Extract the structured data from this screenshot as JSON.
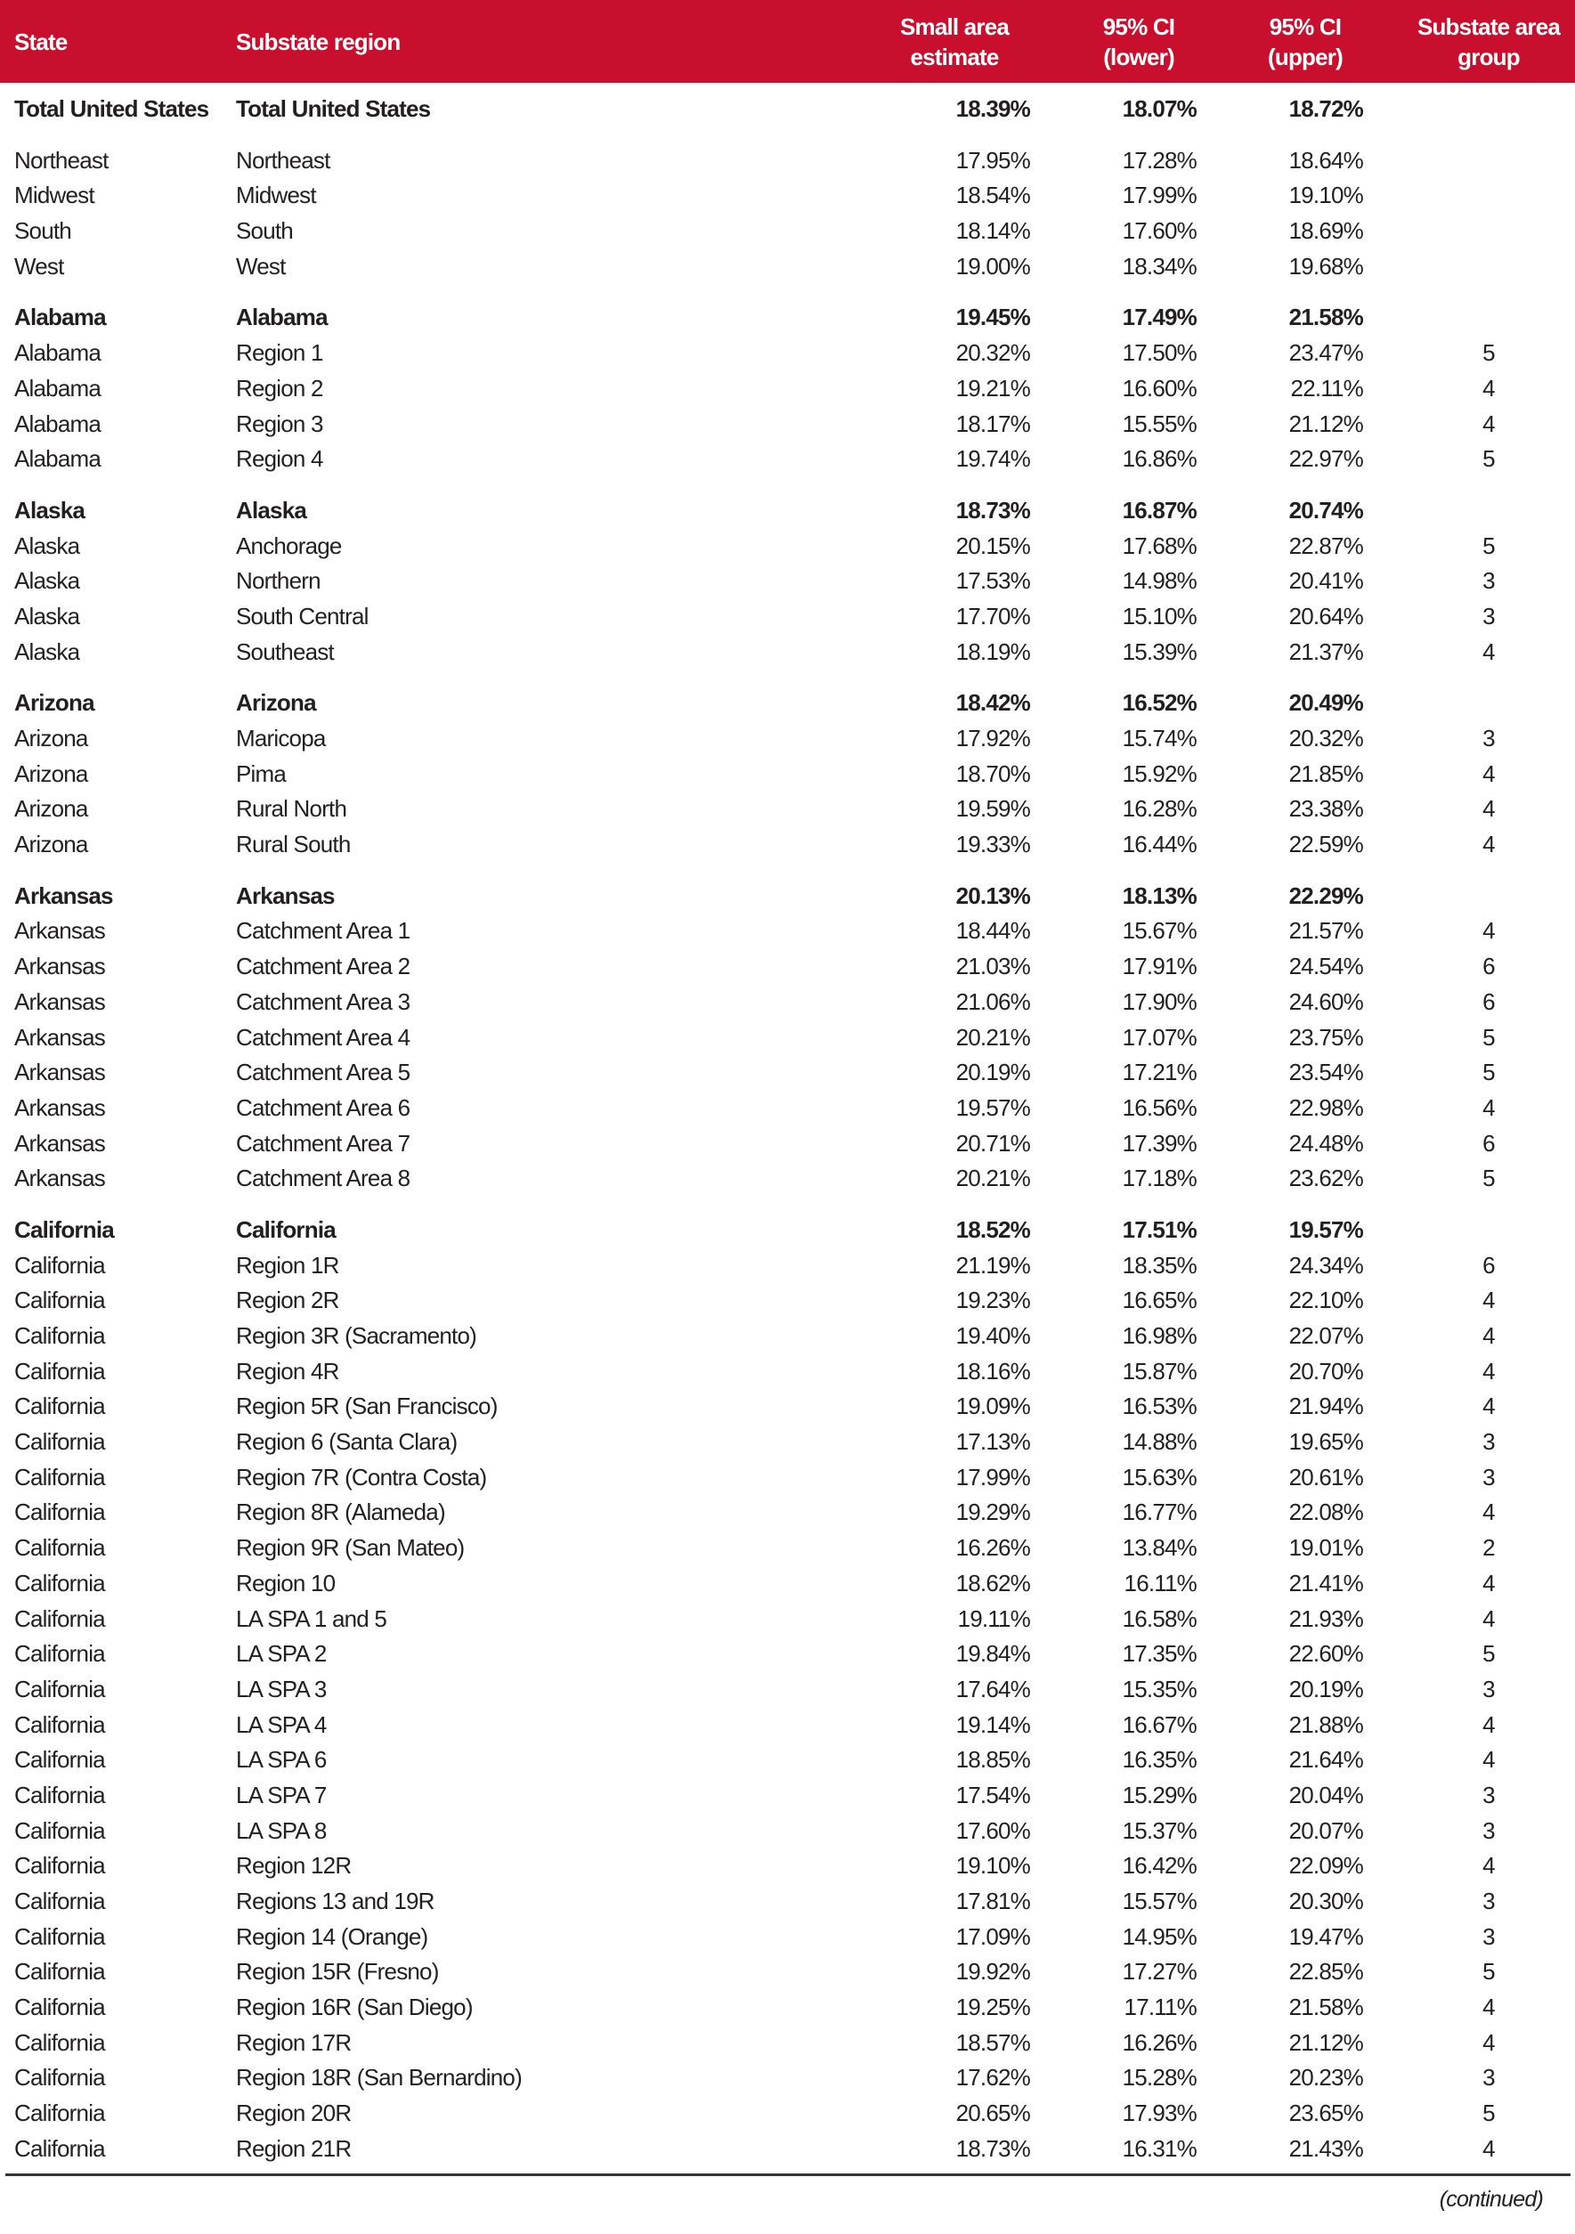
{
  "header": {
    "state": "State",
    "region": "Substate region",
    "estimate": [
      "Small area",
      "estimate"
    ],
    "lower": [
      "95% CI",
      "(lower)"
    ],
    "upper": [
      "95% CI",
      "(upper)"
    ],
    "group": [
      "Substate area",
      "group"
    ]
  },
  "header_color": "#c8102e",
  "groups": [
    {
      "rows": [
        [
          "Total United States",
          "Total United States",
          "18.39%",
          "18.07%",
          "18.72%",
          ""
        ]
      ],
      "bold_first": true
    },
    {
      "rows": [
        [
          "Northeast",
          "Northeast",
          "17.95%",
          "17.28%",
          "18.64%",
          ""
        ],
        [
          "Midwest",
          "Midwest",
          "18.54%",
          "17.99%",
          "19.10%",
          ""
        ],
        [
          "South",
          "South",
          "18.14%",
          "17.60%",
          "18.69%",
          ""
        ],
        [
          "West",
          "West",
          "19.00%",
          "18.34%",
          "19.68%",
          ""
        ]
      ],
      "bold_first": false
    },
    {
      "rows": [
        [
          "Alabama",
          "Alabama",
          "19.45%",
          "17.49%",
          "21.58%",
          ""
        ],
        [
          "Alabama",
          "Region 1",
          "20.32%",
          "17.50%",
          "23.47%",
          "5"
        ],
        [
          "Alabama",
          "Region 2",
          "19.21%",
          "16.60%",
          "22.11%",
          "4"
        ],
        [
          "Alabama",
          "Region 3",
          "18.17%",
          "15.55%",
          "21.12%",
          "4"
        ],
        [
          "Alabama",
          "Region 4",
          "19.74%",
          "16.86%",
          "22.97%",
          "5"
        ]
      ],
      "bold_first": true
    },
    {
      "rows": [
        [
          "Alaska",
          "Alaska",
          "18.73%",
          "16.87%",
          "20.74%",
          ""
        ],
        [
          "Alaska",
          "Anchorage",
          "20.15%",
          "17.68%",
          "22.87%",
          "5"
        ],
        [
          "Alaska",
          "Northern",
          "17.53%",
          "14.98%",
          "20.41%",
          "3"
        ],
        [
          "Alaska",
          "South Central",
          "17.70%",
          "15.10%",
          "20.64%",
          "3"
        ],
        [
          "Alaska",
          "Southeast",
          "18.19%",
          "15.39%",
          "21.37%",
          "4"
        ]
      ],
      "bold_first": true
    },
    {
      "rows": [
        [
          "Arizona",
          "Arizona",
          "18.42%",
          "16.52%",
          "20.49%",
          ""
        ],
        [
          "Arizona",
          "Maricopa",
          "17.92%",
          "15.74%",
          "20.32%",
          "3"
        ],
        [
          "Arizona",
          "Pima",
          "18.70%",
          "15.92%",
          "21.85%",
          "4"
        ],
        [
          "Arizona",
          "Rural North",
          "19.59%",
          "16.28%",
          "23.38%",
          "4"
        ],
        [
          "Arizona",
          "Rural South",
          "19.33%",
          "16.44%",
          "22.59%",
          "4"
        ]
      ],
      "bold_first": true
    },
    {
      "rows": [
        [
          "Arkansas",
          "Arkansas",
          "20.13%",
          "18.13%",
          "22.29%",
          ""
        ],
        [
          "Arkansas",
          "Catchment Area 1",
          "18.44%",
          "15.67%",
          "21.57%",
          "4"
        ],
        [
          "Arkansas",
          "Catchment Area 2",
          "21.03%",
          "17.91%",
          "24.54%",
          "6"
        ],
        [
          "Arkansas",
          "Catchment Area 3",
          "21.06%",
          "17.90%",
          "24.60%",
          "6"
        ],
        [
          "Arkansas",
          "Catchment Area 4",
          "20.21%",
          "17.07%",
          "23.75%",
          "5"
        ],
        [
          "Arkansas",
          "Catchment Area 5",
          "20.19%",
          "17.21%",
          "23.54%",
          "5"
        ],
        [
          "Arkansas",
          "Catchment Area 6",
          "19.57%",
          "16.56%",
          "22.98%",
          "4"
        ],
        [
          "Arkansas",
          "Catchment Area 7",
          "20.71%",
          "17.39%",
          "24.48%",
          "6"
        ],
        [
          "Arkansas",
          "Catchment Area 8",
          "20.21%",
          "17.18%",
          "23.62%",
          "5"
        ]
      ],
      "bold_first": true
    },
    {
      "rows": [
        [
          "California",
          "California",
          "18.52%",
          "17.51%",
          "19.57%",
          ""
        ],
        [
          "California",
          "Region 1R",
          "21.19%",
          "18.35%",
          "24.34%",
          "6"
        ],
        [
          "California",
          "Region 2R",
          "19.23%",
          "16.65%",
          "22.10%",
          "4"
        ],
        [
          "California",
          "Region 3R (Sacramento)",
          "19.40%",
          "16.98%",
          "22.07%",
          "4"
        ],
        [
          "California",
          "Region 4R",
          "18.16%",
          "15.87%",
          "20.70%",
          "4"
        ],
        [
          "California",
          "Region 5R (San Francisco)",
          "19.09%",
          "16.53%",
          "21.94%",
          "4"
        ],
        [
          "California",
          "Region 6 (Santa Clara)",
          "17.13%",
          "14.88%",
          "19.65%",
          "3"
        ],
        [
          "California",
          "Region 7R (Contra Costa)",
          "17.99%",
          "15.63%",
          "20.61%",
          "3"
        ],
        [
          "California",
          "Region 8R (Alameda)",
          "19.29%",
          "16.77%",
          "22.08%",
          "4"
        ],
        [
          "California",
          "Region 9R (San Mateo)",
          "16.26%",
          "13.84%",
          "19.01%",
          "2"
        ],
        [
          "California",
          "Region 10",
          "18.62%",
          "16.11%",
          "21.41%",
          "4"
        ],
        [
          "California",
          "LA SPA 1 and 5",
          "19.11%",
          "16.58%",
          "21.93%",
          "4"
        ],
        [
          "California",
          "LA SPA 2",
          "19.84%",
          "17.35%",
          "22.60%",
          "5"
        ],
        [
          "California",
          "LA SPA 3",
          "17.64%",
          "15.35%",
          "20.19%",
          "3"
        ],
        [
          "California",
          "LA SPA 4",
          "19.14%",
          "16.67%",
          "21.88%",
          "4"
        ],
        [
          "California",
          "LA SPA 6",
          "18.85%",
          "16.35%",
          "21.64%",
          "4"
        ],
        [
          "California",
          "LA SPA 7",
          "17.54%",
          "15.29%",
          "20.04%",
          "3"
        ],
        [
          "California",
          "LA SPA 8",
          "17.60%",
          "15.37%",
          "20.07%",
          "3"
        ],
        [
          "California",
          "Region 12R",
          "19.10%",
          "16.42%",
          "22.09%",
          "4"
        ],
        [
          "California",
          "Regions 13 and 19R",
          "17.81%",
          "15.57%",
          "20.30%",
          "3"
        ],
        [
          "California",
          "Region 14 (Orange)",
          "17.09%",
          "14.95%",
          "19.47%",
          "3"
        ],
        [
          "California",
          "Region 15R (Fresno)",
          "19.92%",
          "17.27%",
          "22.85%",
          "5"
        ],
        [
          "California",
          "Region 16R (San Diego)",
          "19.25%",
          "17.11%",
          "21.58%",
          "4"
        ],
        [
          "California",
          "Region 17R",
          "18.57%",
          "16.26%",
          "21.12%",
          "4"
        ],
        [
          "California",
          "Region 18R (San Bernardino)",
          "17.62%",
          "15.28%",
          "20.23%",
          "3"
        ],
        [
          "California",
          "Region 20R",
          "20.65%",
          "17.93%",
          "23.65%",
          "5"
        ],
        [
          "California",
          "Region 21R",
          "18.73%",
          "16.31%",
          "21.43%",
          "4"
        ]
      ],
      "bold_first": true
    }
  ],
  "footer": {
    "continued": "(continued)"
  }
}
